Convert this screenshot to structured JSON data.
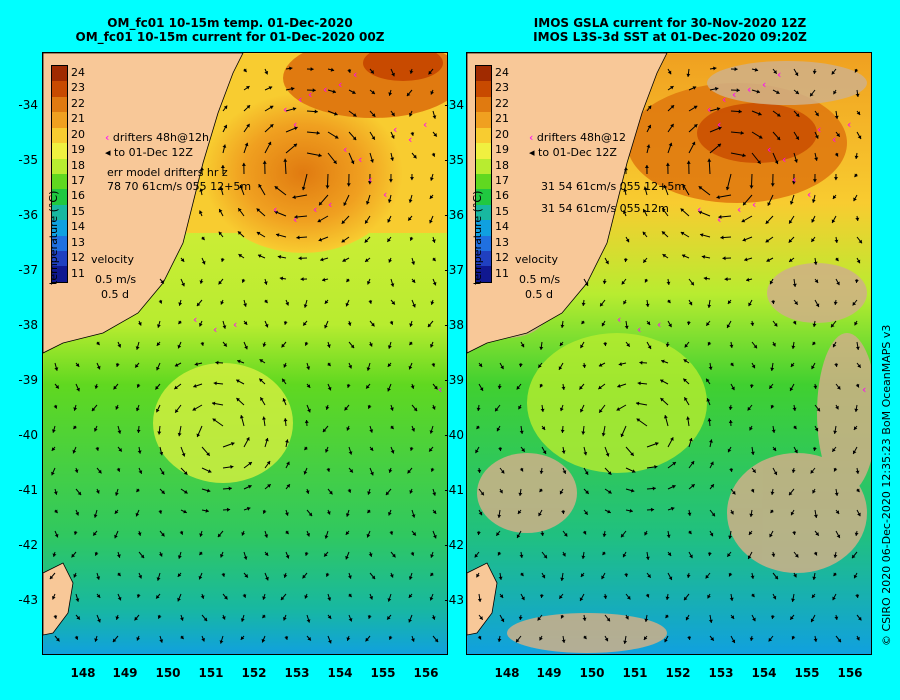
{
  "left_panel": {
    "title_line1": "OM_fc01 10-15m temp. 01-Dec-2020",
    "title_line2": "OM_fc01 10-15m current for 01-Dec-2020 00Z",
    "legend_drifters": "drifters 48h@12h",
    "legend_to": "to 01-Dec 12Z",
    "err_label": "err model drifters hr z",
    "err_values": "78 70 61cm/s 055 12+5m"
  },
  "right_panel": {
    "title_line1": "IMOS GSLA current for 30-Nov-2020 12Z",
    "title_line2": "IMOS L3S-3d SST at 01-Dec-2020 09:20Z",
    "legend_drifters": "drifters 48h@12",
    "legend_to": "to 01-Dec 12Z",
    "err_line1": "31 54 61cm/s 055 12+5m",
    "err_line2": "31 54 61cm/s 055 12m"
  },
  "colorbar": {
    "title": "temperature (°C)",
    "labels": [
      "24",
      "23",
      "22",
      "21",
      "20",
      "19",
      "18",
      "17",
      "16",
      "15",
      "14",
      "13",
      "12",
      "11"
    ],
    "colors": [
      "#a02a00",
      "#c84a00",
      "#e07a10",
      "#f0a020",
      "#f8cc30",
      "#f0f040",
      "#b8ec30",
      "#60d820",
      "#20c840",
      "#18b8a0",
      "#10a0e0",
      "#2070e0",
      "#2040c0",
      "#101890"
    ]
  },
  "velocity_key": {
    "label": "velocity",
    "speed": "0.5 m/s",
    "time": "0.5 d"
  },
  "lat_labels": [
    "-34",
    "-35",
    "-36",
    "-37",
    "-38",
    "-39",
    "-40",
    "-41",
    "-42",
    "-43"
  ],
  "lon_labels": [
    "148",
    "149",
    "150",
    "151",
    "152",
    "153",
    "154",
    "155",
    "156"
  ],
  "credit": "© CSIRO 2020   06-Dec-2020 12:35:23 BoM OceanMAPS v3",
  "colors": {
    "background": "#00ffff",
    "land": "#f8c898",
    "drifters": "#ff00ff"
  }
}
